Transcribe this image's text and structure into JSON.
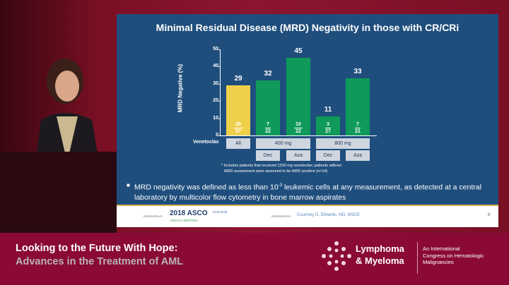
{
  "slide": {
    "title": "Minimal Residual Disease (MRD) Negativity in those with CR/CRi",
    "footnote_line1": "* Includes patients that received 1200 mg venetoclax; patients without",
    "footnote_line2": "MRD assessment were assumed to be MRD positive (n=14)",
    "bullet_pre": "MRD negativity was defined as less than 10",
    "bullet_sup": "-3",
    "bullet_post": " leukemic cells at any measurement, as detected at a central laboratory by multicolor flow cytometry in bone marrow aspirates",
    "footer": {
      "presented_at": "PRESENTED AT:",
      "asco": "2018 ASCO",
      "asco_sub": "ANNUAL MEETING",
      "hashtag": "#ASCO18",
      "presented_by": "PRESENTED BY:",
      "presenter": "Courtney D. DiNardo, MD, MSCE",
      "page": "8"
    }
  },
  "chart_data": {
    "type": "bar",
    "ylabel": "MRD Negative (%)",
    "ylim": [
      0,
      50
    ],
    "yticks": [
      "0",
      "10",
      "20",
      "30",
      "40",
      "50"
    ],
    "row_label": "Venetoclax",
    "groups": [
      "All",
      "400 mg",
      "800 mg"
    ],
    "subgroups": [
      "Dec",
      "Aza",
      "Dec",
      "Aza"
    ],
    "values": [
      29,
      32,
      45,
      11,
      33
    ],
    "labels": [
      "29",
      "32",
      "45",
      "11",
      "33"
    ],
    "numerators": [
      "28",
      "7",
      "10",
      "3",
      "7"
    ],
    "denominators": [
      "97",
      "22",
      "22",
      "27",
      "21"
    ],
    "colors": [
      "#efd04a",
      "#0f9a5a",
      "#0f9a5a",
      "#0f9a5a",
      "#0f9a5a"
    ]
  },
  "banner": {
    "line1": "Looking to the Future With Hope:",
    "line2": "Advances in the Treatment of AML",
    "logo_line1": "Lymphoma",
    "logo_line2": "& Myeloma",
    "tag1": "An International",
    "tag2": "Congress on Hematologic",
    "tag3": "Malignancies"
  }
}
